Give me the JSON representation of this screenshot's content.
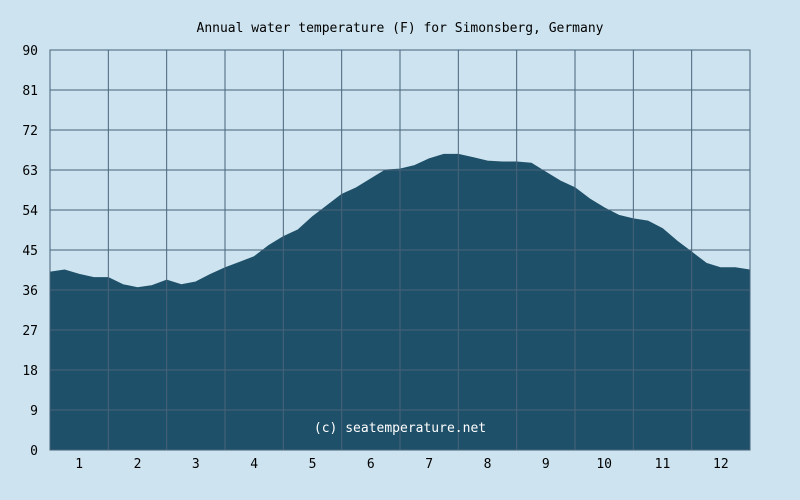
{
  "chart_data": {
    "type": "area",
    "title": "Annual water temperature (F) for Simonsberg, Germany",
    "xlabel": "",
    "ylabel": "",
    "xlim": [
      0.5,
      12.5
    ],
    "ylim": [
      0,
      90
    ],
    "y_ticks": [
      "0",
      "9",
      "18",
      "27",
      "36",
      "45",
      "54",
      "63",
      "72",
      "81",
      "90"
    ],
    "x_ticks": [
      "1",
      "2",
      "3",
      "4",
      "5",
      "6",
      "7",
      "8",
      "9",
      "10",
      "11",
      "12"
    ],
    "grid": true,
    "annotation": "(c) seatemperature.net",
    "colors": {
      "background": "#cde3ef",
      "plot_background": "#cde3ef",
      "area_fill": "#1f5069",
      "grid": "#48637a"
    },
    "series": [
      {
        "x": [
          0.5,
          0.75,
          1.0,
          1.25,
          1.5,
          1.75,
          2.0,
          2.25,
          2.5,
          2.75,
          3.0,
          3.25,
          3.5,
          3.75,
          4.0,
          4.25,
          4.5,
          4.75,
          5.0,
          5.25,
          5.5,
          5.75,
          6.0,
          6.25,
          6.5,
          6.75,
          7.0,
          7.25,
          7.5,
          7.75,
          8.0,
          8.25,
          8.5,
          8.75,
          9.0,
          9.25,
          9.5,
          9.75,
          10.0,
          10.25,
          10.5,
          10.75,
          11.0,
          11.25,
          11.5,
          11.75,
          12.0,
          12.25,
          12.5
        ],
        "values": [
          40.0,
          40.5,
          39.5,
          38.8,
          38.8,
          37.2,
          36.5,
          37.0,
          38.2,
          37.2,
          37.8,
          39.5,
          41.0,
          42.2,
          43.5,
          46.0,
          48.0,
          49.5,
          52.5,
          55.0,
          57.5,
          59.0,
          61.0,
          63.0,
          63.2,
          64.0,
          65.5,
          66.5,
          66.5,
          65.8,
          65.0,
          64.8,
          64.8,
          64.5,
          62.5,
          60.5,
          59.0,
          56.5,
          54.5,
          52.8,
          52.0,
          51.5,
          49.8,
          47.0,
          44.5,
          42.0,
          41.0,
          41.0,
          40.5
        ]
      }
    ]
  }
}
